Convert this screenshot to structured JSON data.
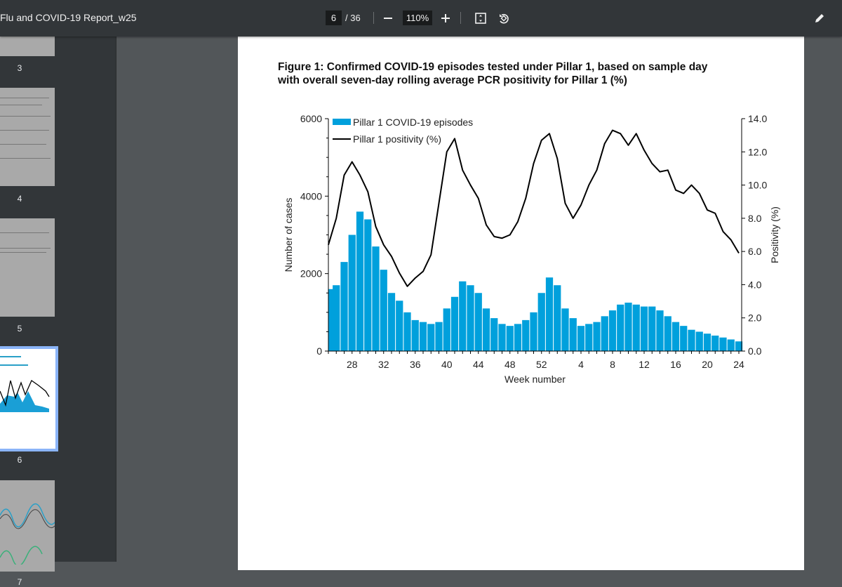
{
  "toolbar": {
    "title": "Flu and COVID-19 Report_w25",
    "current_page": "6",
    "total_pages": "/ 36",
    "zoom": "110%",
    "icons": [
      "minus-icon",
      "plus-icon",
      "fit-page-icon",
      "rotate-icon",
      "pen-icon"
    ]
  },
  "sidebar": {
    "thumbnails": [
      {
        "label": "3"
      },
      {
        "label": "4"
      },
      {
        "label": "5"
      },
      {
        "label": "6",
        "selected": true
      },
      {
        "label": "7"
      }
    ],
    "selection_color": "#8ab4f8"
  },
  "page": {
    "figure_title": "Figure 1: Confirmed COVID-19 episodes tested under Pillar 1, based on sample day with overall seven-day rolling average PCR positivity for Pillar 1 (%)"
  },
  "chart_data": {
    "type": "bar+line",
    "xlabel": "Week number",
    "ylabel": "Number of cases",
    "y2label": "Positivity (%)",
    "ylim": [
      0,
      6000
    ],
    "y2lim": [
      0,
      14
    ],
    "yticks": [
      "0",
      "2000",
      "4000",
      "6000"
    ],
    "y2ticks": [
      "0.0",
      "2.0",
      "4.0",
      "6.0",
      "8.0",
      "10.0",
      "12.0",
      "14.0"
    ],
    "xticks": [
      "28",
      "32",
      "36",
      "40",
      "44",
      "48",
      "52",
      "4",
      "8",
      "12",
      "16",
      "20",
      "24"
    ],
    "weeks": [
      "25",
      "26",
      "27",
      "28",
      "29",
      "30",
      "31",
      "32",
      "33",
      "34",
      "35",
      "36",
      "37",
      "38",
      "39",
      "40",
      "41",
      "42",
      "43",
      "44",
      "45",
      "46",
      "47",
      "48",
      "49",
      "50",
      "51",
      "52",
      "53",
      "1",
      "2",
      "3",
      "4",
      "5",
      "6",
      "7",
      "8",
      "9",
      "10",
      "11",
      "12",
      "13",
      "14",
      "15",
      "16",
      "17",
      "18",
      "19",
      "20",
      "21",
      "22",
      "23",
      "24"
    ],
    "series": [
      {
        "name": "Pillar 1 COVID-19 episodes",
        "type": "bar",
        "color": "#00a0dc",
        "axis": "left",
        "values": [
          1600,
          1700,
          2300,
          3000,
          3600,
          3400,
          2700,
          2100,
          1500,
          1300,
          1000,
          800,
          750,
          700,
          750,
          1100,
          1400,
          1800,
          1700,
          1500,
          1100,
          850,
          700,
          650,
          700,
          800,
          1000,
          1500,
          1900,
          1700,
          1100,
          850,
          650,
          700,
          750,
          900,
          1050,
          1200,
          1250,
          1200,
          1150,
          1150,
          1050,
          900,
          750,
          650,
          550,
          500,
          450,
          400,
          350,
          300,
          250
        ]
      },
      {
        "name": "Pillar 1 positivity (%)",
        "type": "line",
        "color": "#000000",
        "axis": "right",
        "values": [
          6.4,
          8.0,
          10.6,
          11.4,
          10.6,
          9.6,
          7.5,
          6.4,
          5.7,
          4.7,
          3.9,
          4.4,
          4.8,
          5.8,
          8.9,
          12.0,
          12.8,
          10.9,
          10.0,
          9.2,
          7.6,
          6.9,
          6.8,
          7.0,
          7.8,
          9.2,
          11.3,
          12.7,
          13.1,
          11.6,
          8.9,
          8.0,
          8.8,
          10.0,
          10.9,
          12.5,
          13.3,
          13.1,
          12.4,
          13.1,
          12.1,
          11.3,
          10.8,
          10.9,
          9.7,
          9.5,
          10.0,
          9.5,
          8.5,
          8.3,
          7.2,
          6.7,
          5.9
        ]
      }
    ],
    "legend": "top-left",
    "grid": false
  }
}
